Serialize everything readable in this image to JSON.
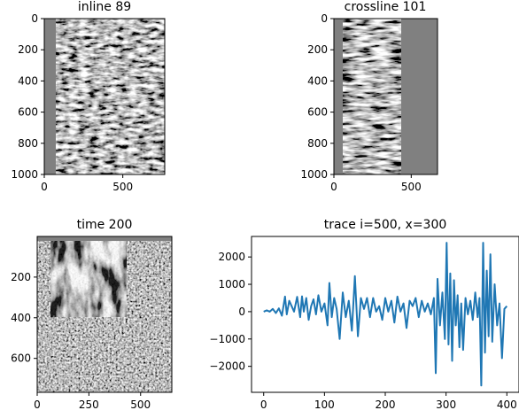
{
  "chart_data": [
    {
      "type": "heatmap",
      "title": "inline 89",
      "xlim": [
        0,
        767
      ],
      "ylim": [
        1000,
        0
      ],
      "xticks": [
        0,
        500
      ],
      "yticks": [
        0,
        200,
        400,
        600,
        800,
        1000
      ],
      "xtick_labels": [
        "0",
        "500"
      ],
      "ytick_labels": [
        "0",
        "200",
        "400",
        "600",
        "800",
        "1000"
      ],
      "data_extent_x": [
        75,
        767
      ],
      "colormap": "gray"
    },
    {
      "type": "heatmap",
      "title": "crossline 101",
      "xlim": [
        0,
        670
      ],
      "ylim": [
        1000,
        0
      ],
      "xticks": [
        0,
        500
      ],
      "yticks": [
        0,
        200,
        400,
        600,
        800,
        1000
      ],
      "xtick_labels": [
        "0",
        "500"
      ],
      "ytick_labels": [
        "0",
        "200",
        "400",
        "600",
        "800",
        "1000"
      ],
      "data_extent_x": [
        60,
        430
      ],
      "colormap": "gray"
    },
    {
      "type": "heatmap",
      "title": "time 200",
      "xlim": [
        0,
        651
      ],
      "ylim": [
        767,
        0
      ],
      "xticks": [
        0,
        250,
        500
      ],
      "yticks": [
        200,
        400,
        600
      ],
      "xtick_labels": [
        "0",
        "250",
        "500"
      ],
      "ytick_labels": [
        "200",
        "400",
        "600"
      ],
      "colormap": "gray"
    },
    {
      "type": "line",
      "title": "trace i=500, x=300",
      "xlim": [
        -20,
        420
      ],
      "ylim": [
        -2950,
        2750
      ],
      "xticks": [
        0,
        100,
        200,
        300,
        400
      ],
      "yticks": [
        -2000,
        -1000,
        0,
        1000,
        2000
      ],
      "xtick_labels": [
        "0",
        "100",
        "200",
        "300",
        "400"
      ],
      "ytick_labels": [
        "−2000",
        "−1000",
        "0",
        "1000",
        "2000"
      ],
      "color": "#1f77b4",
      "series": [
        {
          "x": [
            0,
            5,
            10,
            15,
            20,
            25,
            30,
            35,
            38,
            42,
            46,
            50,
            55,
            60,
            63,
            66,
            70,
            74,
            78,
            82,
            86,
            90,
            95,
            100,
            105,
            108,
            112,
            116,
            120,
            125,
            130,
            135,
            140,
            145,
            150,
            155,
            160,
            165,
            170,
            175,
            180,
            185,
            190,
            195,
            200,
            205,
            210,
            215,
            220,
            225,
            230,
            235,
            240,
            245,
            250,
            255,
            260,
            265,
            270,
            275,
            280,
            283,
            286,
            290,
            294,
            298,
            301,
            304,
            307,
            310,
            313,
            316,
            319,
            322,
            325,
            328,
            332,
            336,
            340,
            344,
            348,
            352,
            355,
            358,
            361,
            364,
            367,
            370,
            373,
            376,
            380,
            384,
            388,
            392,
            396,
            400
          ],
          "y": [
            0,
            50,
            0,
            100,
            -50,
            120,
            -150,
            550,
            -100,
            400,
            200,
            0,
            540,
            -200,
            560,
            0,
            500,
            -300,
            200,
            450,
            -100,
            600,
            0,
            300,
            -500,
            1050,
            -200,
            500,
            100,
            -1000,
            700,
            -200,
            400,
            -700,
            1300,
            -900,
            500,
            100,
            500,
            -200,
            500,
            0,
            200,
            -300,
            500,
            0,
            400,
            -400,
            550,
            0,
            300,
            -600,
            400,
            200,
            500,
            -200,
            400,
            0,
            300,
            -100,
            500,
            -2250,
            1200,
            -500,
            700,
            -1000,
            2520,
            -1200,
            1400,
            -1800,
            1150,
            -500,
            600,
            -1300,
            300,
            -1400,
            500,
            -100,
            400,
            -300,
            700,
            -200,
            500,
            -2700,
            2520,
            -1500,
            1500,
            -900,
            2100,
            -1100,
            1000,
            -500,
            300,
            -1700,
            100,
            200
          ]
        }
      ]
    }
  ]
}
